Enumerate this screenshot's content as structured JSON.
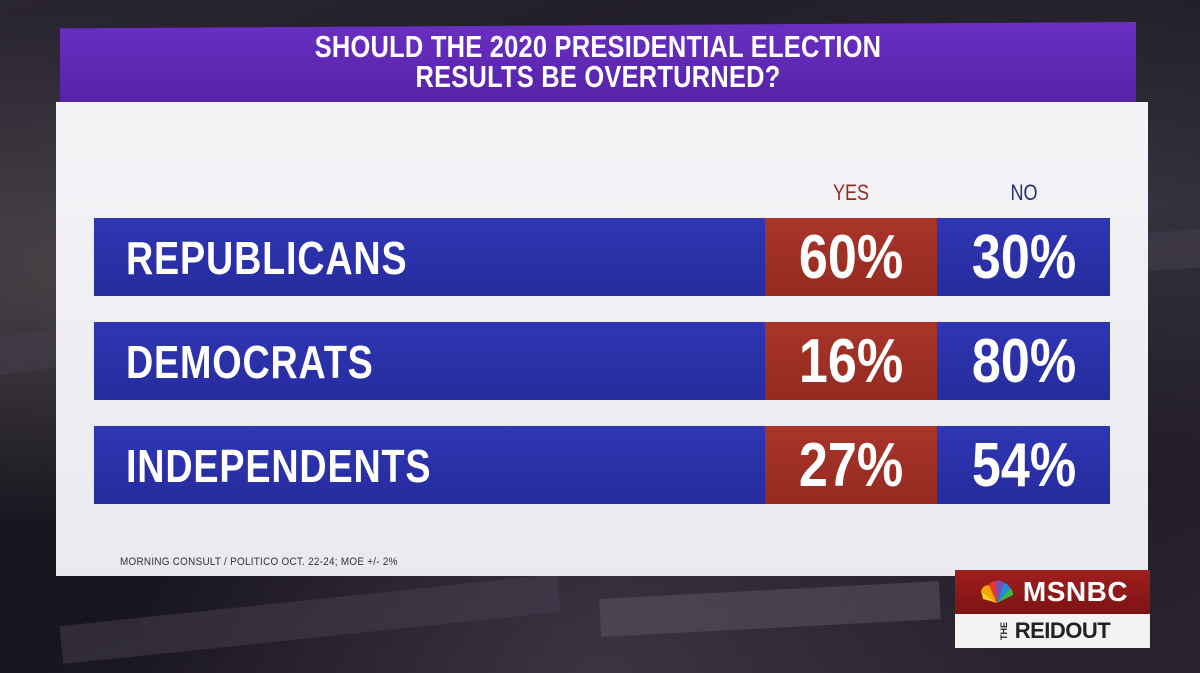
{
  "chart_data": {
    "type": "table",
    "title": "SHOULD THE 2020 PRESIDENTIAL ELECTION RESULTS BE OVERTURNED?",
    "columns": [
      "YES",
      "NO"
    ],
    "categories": [
      "REPUBLICANS",
      "DEMOCRATS",
      "INDEPENDENTS"
    ],
    "series": [
      {
        "name": "YES",
        "values": [
          "60%",
          "16%",
          "27%"
        ]
      },
      {
        "name": "NO",
        "values": [
          "30%",
          "80%",
          "54%"
        ]
      }
    ],
    "source": "MORNING CONSULT / POLITICO OCT. 22-24; MOE +/- 2%"
  },
  "branding": {
    "network": "MSNBC",
    "show_prefix": "THE",
    "show_name": "REIDOUT",
    "icon": "peacock-logo-icon"
  },
  "colors": {
    "header": "#5a26b0",
    "row_blue": "#2a2fa8",
    "yes_red": "#9e2f25",
    "panel": "#efeff3"
  }
}
